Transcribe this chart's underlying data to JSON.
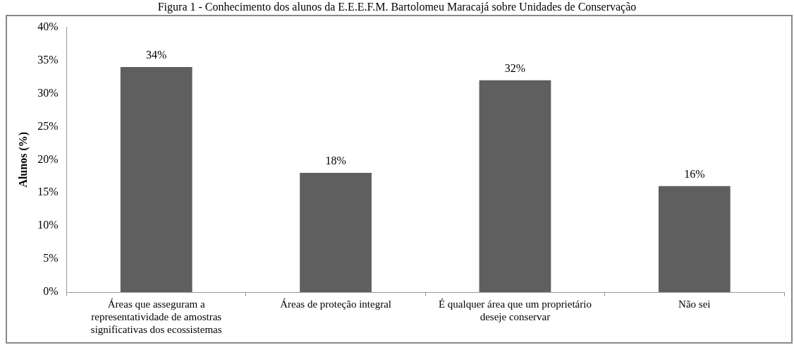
{
  "chart_data": {
    "type": "bar",
    "title": "Figura 1 - Conhecimento dos alunos da E.E.E.F.M. Bartolomeu Maracajá sobre Unidades de Conservação",
    "ylabel": "Alunos (%)",
    "categories": [
      "Áreas que asseguram a representatividade de amostras significativas dos ecossistemas",
      "Áreas de proteção integral",
      "É qualquer área que um proprietário deseje conservar",
      "Não sei"
    ],
    "values": [
      34,
      18,
      32,
      16
    ],
    "value_labels": [
      "34%",
      "18%",
      "32%",
      "16%"
    ],
    "color": "#5f5f5f",
    "ylim": [
      0,
      40
    ],
    "yticks": [
      {
        "value": 0,
        "label": "0%"
      },
      {
        "value": 5,
        "label": "5%"
      },
      {
        "value": 10,
        "label": "10%"
      },
      {
        "value": 15,
        "label": "15%"
      },
      {
        "value": 20,
        "label": "20%"
      },
      {
        "value": 25,
        "label": "25%"
      },
      {
        "value": 30,
        "label": "30%"
      },
      {
        "value": 35,
        "label": "35%"
      },
      {
        "value": 40,
        "label": "40%"
      }
    ],
    "grid": false
  }
}
